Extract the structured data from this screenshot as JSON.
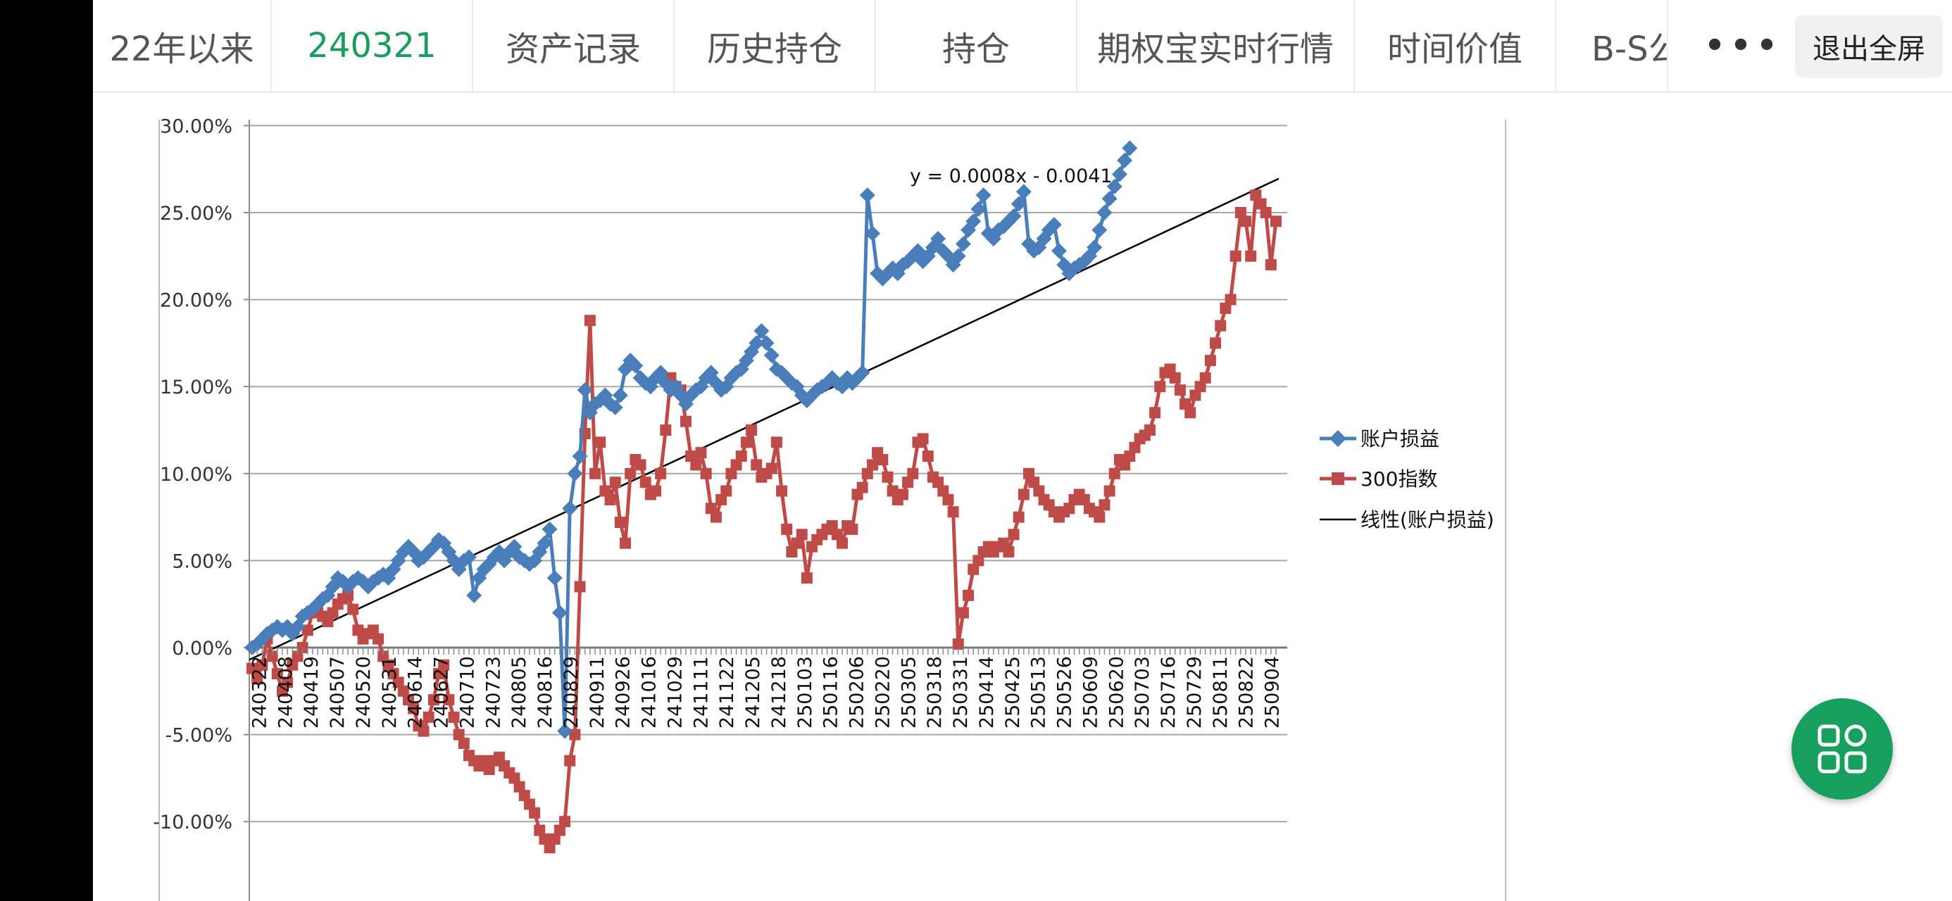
{
  "tabs": [
    {
      "label": "22年以来",
      "active": false
    },
    {
      "label": "240321",
      "active": true
    },
    {
      "label": "资产记录",
      "active": false
    },
    {
      "label": "历史持仓",
      "active": false
    },
    {
      "label": "持仓",
      "active": false
    },
    {
      "label": "期权宝实时行情",
      "active": false
    },
    {
      "label": "时间价值",
      "active": false
    },
    {
      "label": "B-S公",
      "active": false
    }
  ],
  "toolbar": {
    "more_label": "•••",
    "exit_label": "退出全屏"
  },
  "fab": {
    "icon": "apps-grid-icon"
  },
  "colors": {
    "accent": "#1a9e5f",
    "series1": "#4a7ebb",
    "series2": "#be4b48",
    "trend": "#000000"
  },
  "chart_data": {
    "type": "line",
    "ylim": [
      -0.12,
      0.3
    ],
    "y_ticks": [
      "30.00%",
      "25.00%",
      "20.00%",
      "15.00%",
      "10.00%",
      "5.00%",
      "0.00%",
      "-5.00%",
      "-10.00%"
    ],
    "y_tick_values": [
      0.3,
      0.25,
      0.2,
      0.15,
      0.1,
      0.05,
      0.0,
      -0.05,
      -0.1
    ],
    "x_tick_labels": [
      "240322",
      "240408",
      "240419",
      "240507",
      "240520",
      "240531",
      "240614",
      "240627",
      "240710",
      "240723",
      "240805",
      "240816",
      "240829",
      "240911",
      "240926",
      "241016",
      "241029",
      "241111",
      "241122",
      "241205",
      "241218",
      "250103",
      "250116",
      "250206",
      "250220",
      "250305",
      "250318",
      "250331",
      "250414",
      "250425",
      "250513",
      "250526",
      "250609",
      "250620",
      "250703",
      "250716",
      "250729",
      "250811",
      "250822",
      "250904"
    ],
    "trendline_label": "y = 0.0008x - 0.0041",
    "legend": {
      "position": "right",
      "entries": [
        "账户损益",
        "300指数",
        "线性(账户损益)"
      ]
    },
    "series": [
      {
        "name": "账户损益",
        "marker": "diamond",
        "values": [
          0.0,
          0.002,
          0.005,
          0.008,
          0.01,
          0.012,
          0.01,
          0.012,
          0.008,
          0.012,
          0.018,
          0.02,
          0.022,
          0.025,
          0.028,
          0.03,
          0.035,
          0.04,
          0.038,
          0.035,
          0.038,
          0.04,
          0.038,
          0.035,
          0.038,
          0.04,
          0.042,
          0.04,
          0.045,
          0.05,
          0.055,
          0.058,
          0.055,
          0.05,
          0.052,
          0.055,
          0.058,
          0.062,
          0.06,
          0.055,
          0.05,
          0.045,
          0.05,
          0.052,
          0.03,
          0.04,
          0.045,
          0.048,
          0.052,
          0.055,
          0.05,
          0.055,
          0.058,
          0.052,
          0.05,
          0.048,
          0.05,
          0.055,
          0.06,
          0.068,
          0.04,
          0.02,
          -0.048,
          0.08,
          0.1,
          0.11,
          0.148,
          0.135,
          0.14,
          0.142,
          0.145,
          0.14,
          0.138,
          0.145,
          0.16,
          0.165,
          0.162,
          0.155,
          0.152,
          0.15,
          0.155,
          0.158,
          0.152,
          0.148,
          0.15,
          0.145,
          0.14,
          0.145,
          0.148,
          0.15,
          0.155,
          0.158,
          0.152,
          0.148,
          0.15,
          0.155,
          0.158,
          0.16,
          0.165,
          0.17,
          0.175,
          0.182,
          0.175,
          0.168,
          0.16,
          0.158,
          0.155,
          0.152,
          0.15,
          0.145,
          0.142,
          0.145,
          0.148,
          0.15,
          0.152,
          0.155,
          0.152,
          0.15,
          0.155,
          0.152,
          0.155,
          0.158,
          0.26,
          0.238,
          0.215,
          0.212,
          0.215,
          0.218,
          0.215,
          0.22,
          0.222,
          0.225,
          0.228,
          0.222,
          0.225,
          0.23,
          0.235,
          0.228,
          0.225,
          0.22,
          0.225,
          0.232,
          0.24,
          0.245,
          0.252,
          0.26,
          0.238,
          0.235,
          0.24,
          0.242,
          0.245,
          0.248,
          0.255,
          0.262,
          0.232,
          0.228,
          0.23,
          0.235,
          0.24,
          0.243,
          0.228,
          0.22,
          0.215,
          0.218,
          0.22,
          0.222,
          0.225,
          0.23,
          0.24,
          0.25,
          0.258,
          0.265,
          0.272,
          0.28,
          0.287
        ]
      },
      {
        "name": "300指数",
        "marker": "square",
        "values": [
          -0.012,
          -0.018,
          -0.01,
          0.005,
          -0.005,
          -0.015,
          -0.025,
          -0.02,
          -0.01,
          -0.005,
          0.0,
          0.01,
          0.02,
          0.022,
          0.018,
          0.015,
          0.02,
          0.025,
          0.028,
          0.03,
          0.022,
          0.01,
          0.005,
          0.008,
          0.01,
          0.005,
          -0.005,
          -0.01,
          -0.015,
          -0.02,
          -0.025,
          -0.03,
          -0.035,
          -0.045,
          -0.048,
          -0.04,
          -0.03,
          -0.015,
          -0.01,
          -0.03,
          -0.04,
          -0.05,
          -0.055,
          -0.062,
          -0.065,
          -0.068,
          -0.065,
          -0.07,
          -0.065,
          -0.063,
          -0.068,
          -0.072,
          -0.075,
          -0.08,
          -0.085,
          -0.09,
          -0.095,
          -0.105,
          -0.11,
          -0.115,
          -0.11,
          -0.105,
          -0.1,
          -0.065,
          -0.05,
          0.035,
          0.123,
          0.188,
          0.1,
          0.118,
          0.09,
          0.085,
          0.095,
          0.072,
          0.06,
          0.1,
          0.108,
          0.105,
          0.095,
          0.088,
          0.09,
          0.1,
          0.125,
          0.155,
          0.15,
          0.148,
          0.13,
          0.11,
          0.105,
          0.112,
          0.1,
          0.08,
          0.075,
          0.085,
          0.09,
          0.1,
          0.105,
          0.11,
          0.118,
          0.125,
          0.105,
          0.098,
          0.1,
          0.103,
          0.118,
          0.09,
          0.068,
          0.055,
          0.06,
          0.065,
          0.04,
          0.058,
          0.062,
          0.065,
          0.068,
          0.07,
          0.065,
          0.06,
          0.07,
          0.068,
          0.088,
          0.092,
          0.1,
          0.105,
          0.112,
          0.108,
          0.098,
          0.09,
          0.085,
          0.088,
          0.095,
          0.1,
          0.118,
          0.12,
          0.11,
          0.098,
          0.095,
          0.09,
          0.085,
          0.078,
          0.002,
          0.02,
          0.03,
          0.045,
          0.05,
          0.055,
          0.058,
          0.055,
          0.058,
          0.06,
          0.055,
          0.065,
          0.075,
          0.088,
          0.1,
          0.095,
          0.09,
          0.085,
          0.082,
          0.078,
          0.075,
          0.078,
          0.08,
          0.085,
          0.088,
          0.085,
          0.08,
          0.078,
          0.075,
          0.082,
          0.09,
          0.1,
          0.108,
          0.105,
          0.11,
          0.115,
          0.12,
          0.122,
          0.125,
          0.135,
          0.15,
          0.158,
          0.16,
          0.155,
          0.148,
          0.14,
          0.135,
          0.145,
          0.15,
          0.155,
          0.165,
          0.175,
          0.185,
          0.195,
          0.2,
          0.225,
          0.25,
          0.245,
          0.225,
          0.26,
          0.255,
          0.25,
          0.22,
          0.245
        ]
      }
    ]
  }
}
